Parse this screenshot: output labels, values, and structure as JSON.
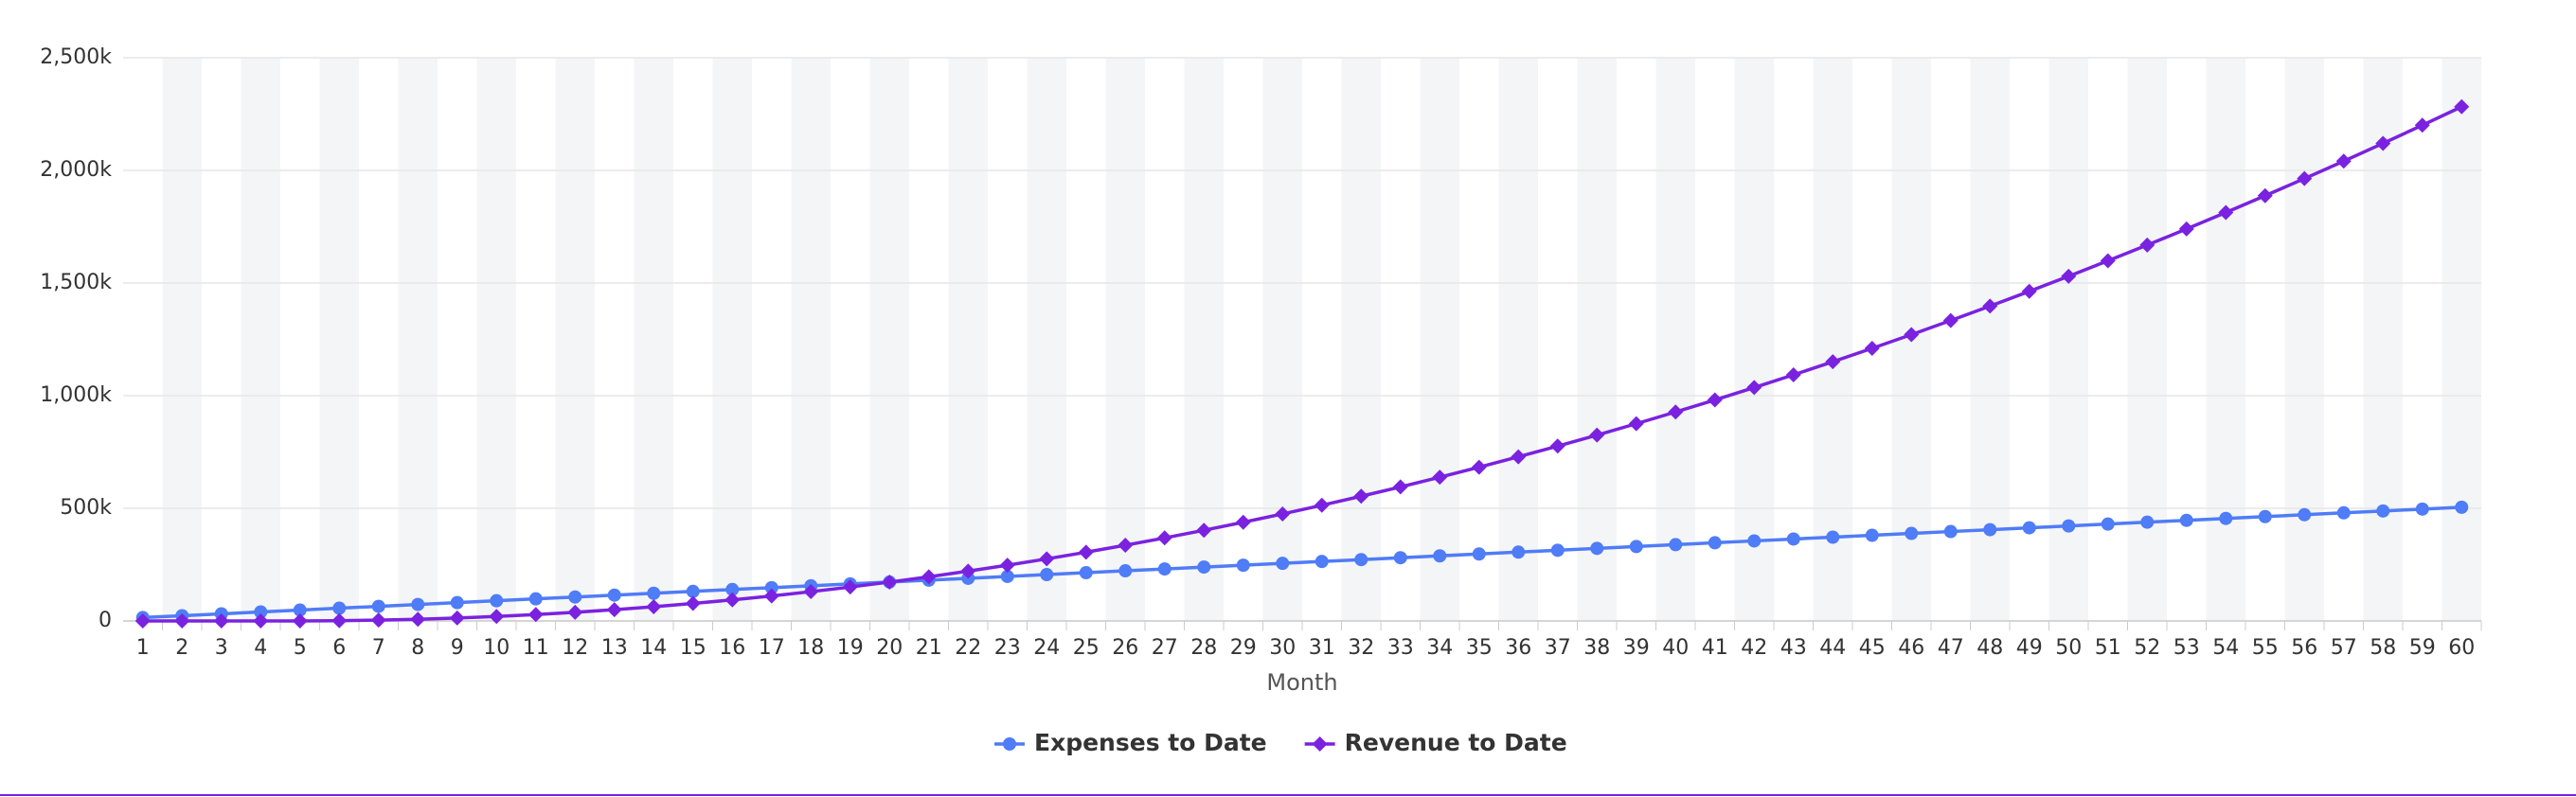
{
  "chart_data": {
    "type": "line",
    "x_label": "Month",
    "categories": [
      1,
      2,
      3,
      4,
      5,
      6,
      7,
      8,
      9,
      10,
      11,
      12,
      13,
      14,
      15,
      16,
      17,
      18,
      19,
      20,
      21,
      22,
      23,
      24,
      25,
      26,
      27,
      28,
      29,
      30,
      31,
      32,
      33,
      34,
      35,
      36,
      37,
      38,
      39,
      40,
      41,
      42,
      43,
      44,
      45,
      46,
      47,
      48,
      49,
      50,
      51,
      52,
      53,
      54,
      55,
      56,
      57,
      58,
      59,
      60
    ],
    "series": [
      {
        "name": "Expenses to Date",
        "color": "#4f7cf7",
        "marker": "circle",
        "values": [
          15000,
          23300,
          31600,
          39900,
          48200,
          56500,
          64800,
          73100,
          81400,
          89700,
          98000,
          106300,
          114600,
          122900,
          131200,
          139500,
          147800,
          156100,
          164400,
          172700,
          181000,
          189300,
          197600,
          205900,
          214200,
          222500,
          230800,
          239100,
          247400,
          255700,
          264000,
          272300,
          280600,
          288900,
          297200,
          305500,
          313800,
          322100,
          330400,
          338700,
          347000,
          355300,
          363600,
          371900,
          380200,
          388500,
          396800,
          405100,
          413400,
          421700,
          430000,
          438300,
          446600,
          454900,
          463200,
          471500,
          479800,
          488100,
          496400,
          504700
        ]
      },
      {
        "name": "Revenue to Date",
        "color": "#7a22e0",
        "marker": "diamond",
        "values": [
          0,
          0,
          0,
          0,
          0,
          1000,
          3500,
          7500,
          13000,
          20000,
          28500,
          38500,
          50000,
          63000,
          77500,
          93500,
          111000,
          130000,
          150500,
          172500,
          196000,
          221000,
          247500,
          275500,
          305000,
          336000,
          368500,
          402500,
          438000,
          475000,
          513500,
          553500,
          595000,
          638000,
          682500,
          728500,
          776000,
          825000,
          875500,
          927500,
          981000,
          1036000,
          1092500,
          1150500,
          1210000,
          1271000,
          1333500,
          1397500,
          1463000,
          1530000,
          1598500,
          1668500,
          1740000,
          1813000,
          1887500,
          1963500,
          2041000,
          2120000,
          2200500,
          2282500
        ]
      }
    ],
    "ylim": [
      0,
      2500000
    ],
    "yticks": [
      0,
      {
        "value": 500000,
        "label": "500k"
      },
      {
        "value": 1000000,
        "label": "1,000k"
      },
      {
        "value": 1500000,
        "label": "1,500k"
      },
      {
        "value": 2000000,
        "label": "2,000k"
      },
      {
        "value": 2500000,
        "label": "2,500k"
      }
    ],
    "grid": true,
    "legend": "bottom"
  }
}
